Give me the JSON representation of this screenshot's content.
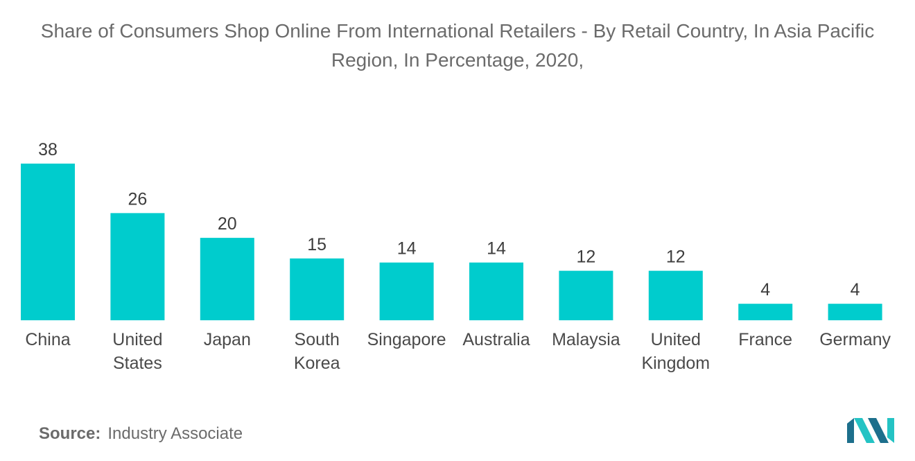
{
  "colors": {
    "bar": "#00cccd",
    "logo_dark": "#1d6f8c",
    "logo_light": "#24c3c4"
  },
  "chart_data": {
    "type": "bar",
    "title": "Share of Consumers Shop Online From International Retailers - By Retail Country, In Asia Pacific Region, In Percentage, 2020,",
    "xlabel": "",
    "ylabel": "",
    "categories": [
      [
        "China"
      ],
      [
        "United",
        "States"
      ],
      [
        "Japan"
      ],
      [
        "South",
        "Korea"
      ],
      [
        "Singapore"
      ],
      [
        "Australia"
      ],
      [
        "Malaysia"
      ],
      [
        "United",
        "Kingdom"
      ],
      [
        "France"
      ],
      [
        "Germany"
      ]
    ],
    "values": [
      38,
      26,
      20,
      15,
      14,
      14,
      12,
      12,
      4,
      4
    ],
    "ylim": [
      0,
      38
    ],
    "grid": false,
    "legend": "none",
    "data_labels": true
  },
  "source": {
    "label": "Source:",
    "text": "Industry Associate"
  },
  "logo": {
    "icon": "mordor-intelligence-logo-icon"
  }
}
